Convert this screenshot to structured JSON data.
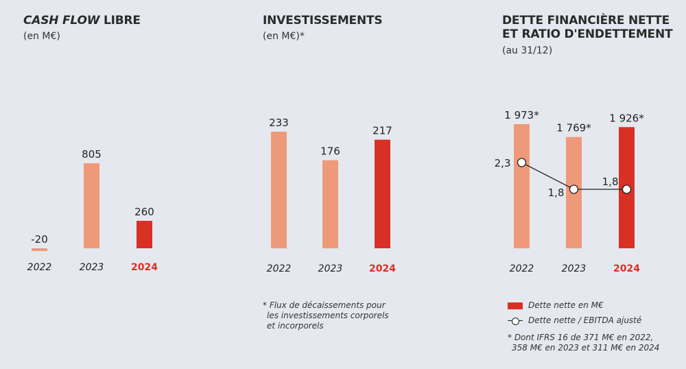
{
  "colors": {
    "prev": "#ee9a7a",
    "current": "#d93025",
    "line": "#222222"
  },
  "chart_data": [
    {
      "type": "bar",
      "title_italic": "CASH FLOW",
      "title_rest": " LIBRE",
      "subtitle": "(en M€)",
      "categories": [
        "2022",
        "2023",
        "2024"
      ],
      "values": [
        -20,
        805,
        260
      ],
      "labels": [
        "-20",
        "805",
        "260"
      ],
      "highlight_index": 2
    },
    {
      "type": "bar",
      "title": "INVESTISSEMENTS",
      "subtitle": "(en M€)*",
      "categories": [
        "2022",
        "2023",
        "2024"
      ],
      "values": [
        233,
        176,
        217
      ],
      "labels": [
        "233",
        "176",
        "217"
      ],
      "highlight_index": 2,
      "footnote": [
        "* Flux de décaissements pour",
        "les investissements corporels",
        "et incorporels"
      ]
    },
    {
      "type": "bar+line",
      "title_line1": "DETTE FINANCIÈRE NETTE",
      "title_line2": "ET RATIO D'ENDETTEMENT",
      "subtitle": "(au 31/12)",
      "categories": [
        "2022",
        "2023",
        "2024"
      ],
      "values": [
        1973,
        1769,
        1926
      ],
      "labels": [
        "1 973*",
        "1 769*",
        "1 926*"
      ],
      "ratio": [
        2.3,
        1.8,
        1.8
      ],
      "ratio_labels": [
        "2,3",
        "1,8",
        "1,8"
      ],
      "highlight_index": 2,
      "legend": {
        "bar": "Dette nette en M€",
        "line": "Dette nette / EBITDA ajusté"
      },
      "footnote": [
        "* Dont IFRS 16 de 371 M€ en 2022,",
        "358 M€ en 2023 et 311 M€ en 2024"
      ]
    }
  ]
}
